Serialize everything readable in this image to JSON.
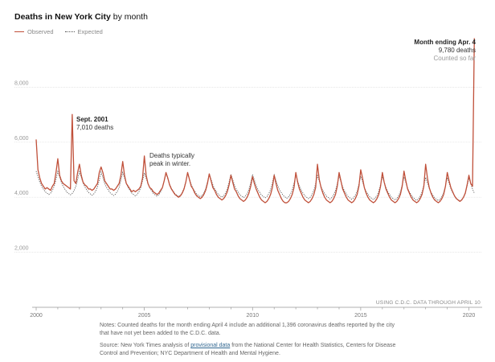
{
  "header": {
    "title_bold": "Deaths in New York City",
    "title_rest": " by month"
  },
  "legend": {
    "observed_label": "Observed",
    "expected_label": "Expected"
  },
  "annotations": {
    "sept2001_title": "Sept. 2001",
    "sept2001_value": "7,010 deaths",
    "winter_line1": "Deaths typically",
    "winter_line2": "peak in winter.",
    "latest_title": "Month ending Apr. 4",
    "latest_value": "9,780 deaths",
    "latest_note": "Counted so far"
  },
  "source_note": "USING C.D.C. DATA THROUGH APRIL 10",
  "notes": {
    "line1": "Notes: Counted deaths for the month ending April 4 include an additional 1,396 coronavirus deaths reported by the city that have not yet been added to the C.D.C. data.",
    "src_prefix": "Source: New York Times analysis of ",
    "src_link": "provisional data",
    "src_suffix": " from the National Center for Health Statistics, Centers for Disease Control and Prevention; NYC Department of Health and Mental Hygiene."
  },
  "colors": {
    "observed": "#c0503a",
    "expected": "#555555",
    "grid": "#dddddd"
  },
  "chart_data": {
    "type": "line",
    "title": "Deaths in New York City by month",
    "xlabel": "",
    "ylabel": "",
    "xlim": [
      2000,
      2020.5
    ],
    "ylim": [
      0,
      10000
    ],
    "y_ticks": [
      2000,
      4000,
      6000,
      8000
    ],
    "y_tick_labels": [
      "2,000",
      "4,000",
      "6,000",
      "8,000"
    ],
    "x_ticks": [
      2000,
      2005,
      2010,
      2015,
      2020
    ],
    "x_tick_labels": [
      "2000",
      "2005",
      "2010",
      "2015",
      "2020"
    ],
    "series": [
      {
        "name": "Observed",
        "start": 2000.0,
        "step_months": 1,
        "values": [
          6100,
          5000,
          4700,
          4500,
          4400,
          4300,
          4350,
          4300,
          4250,
          4400,
          4500,
          4900,
          5400,
          4800,
          4600,
          4500,
          4450,
          4400,
          4350,
          4300,
          7010,
          4600,
          4500,
          4900,
          5200,
          4800,
          4550,
          4450,
          4400,
          4300,
          4300,
          4250,
          4300,
          4400,
          4500,
          4900,
          5100,
          4900,
          4600,
          4500,
          4400,
          4300,
          4300,
          4250,
          4300,
          4400,
          4500,
          4800,
          5300,
          4800,
          4500,
          4400,
          4300,
          4200,
          4250,
          4200,
          4250,
          4300,
          4400,
          4700,
          5500,
          4800,
          4500,
          4350,
          4300,
          4200,
          4150,
          4100,
          4150,
          4250,
          4350,
          4600,
          4900,
          4700,
          4450,
          4300,
          4200,
          4100,
          4050,
          4000,
          4050,
          4150,
          4300,
          4550,
          4900,
          4650,
          4400,
          4300,
          4150,
          4050,
          4000,
          3950,
          4000,
          4100,
          4250,
          4500,
          4850,
          4600,
          4350,
          4250,
          4100,
          4000,
          3950,
          3900,
          3950,
          4050,
          4200,
          4450,
          4800,
          4550,
          4300,
          4200,
          4050,
          3950,
          3900,
          3850,
          3900,
          4000,
          4150,
          4400,
          4750,
          4500,
          4300,
          4150,
          4000,
          3900,
          3850,
          3800,
          3850,
          3950,
          4100,
          4350,
          4800,
          4500,
          4250,
          4100,
          3950,
          3850,
          3800,
          3800,
          3850,
          3950,
          4100,
          4350,
          4900,
          4550,
          4300,
          4150,
          4000,
          3900,
          3850,
          3800,
          3850,
          3950,
          4100,
          4350,
          5200,
          4650,
          4350,
          4150,
          4000,
          3900,
          3850,
          3800,
          3850,
          3950,
          4100,
          4400,
          4900,
          4600,
          4300,
          4150,
          4000,
          3900,
          3850,
          3800,
          3850,
          3950,
          4100,
          4400,
          5000,
          4700,
          4350,
          4150,
          4000,
          3900,
          3850,
          3800,
          3850,
          3950,
          4100,
          4400,
          4900,
          4550,
          4300,
          4150,
          4000,
          3900,
          3850,
          3800,
          3850,
          3950,
          4100,
          4400,
          4950,
          4600,
          4300,
          4150,
          4000,
          3900,
          3850,
          3800,
          3850,
          3950,
          4100,
          4400,
          5200,
          4700,
          4350,
          4150,
          4000,
          3900,
          3850,
          3800,
          3850,
          3950,
          4100,
          4400,
          4900,
          4600,
          4350,
          4200,
          4050,
          3950,
          3900,
          3850,
          3900,
          4000,
          4150,
          4450,
          4800,
          4500,
          4400,
          9780
        ]
      },
      {
        "name": "Expected",
        "start": 2000.0,
        "step_months": 1,
        "pattern": [
          4950,
          4750,
          4550,
          4400,
          4300,
          4200,
          4150,
          4100,
          4150,
          4250,
          4400,
          4650
        ],
        "decline_per_year": 25,
        "end": 2020.25
      }
    ]
  }
}
